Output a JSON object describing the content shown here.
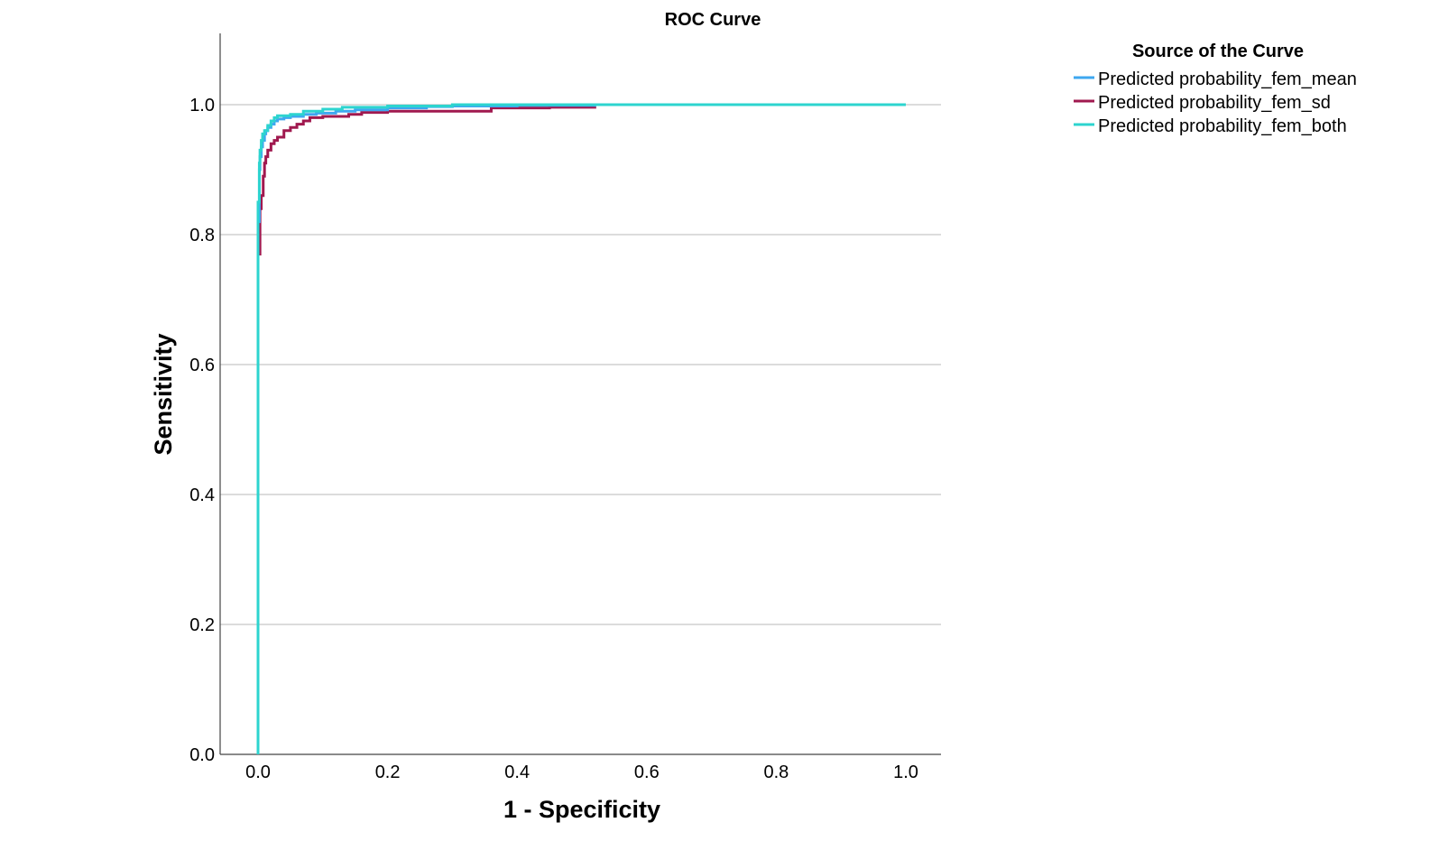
{
  "chart_data": {
    "type": "line",
    "title": "ROC Curve",
    "xlabel": "1 - Specificity",
    "ylabel": "Sensitivity",
    "xlim": [
      0,
      1
    ],
    "ylim": [
      0,
      1
    ],
    "x_ticks": [
      "0.0",
      "0.2",
      "0.4",
      "0.6",
      "0.8",
      "1.0"
    ],
    "y_ticks": [
      "0.0",
      "0.2",
      "0.4",
      "0.6",
      "0.8",
      "1.0"
    ],
    "grid": "horizontal",
    "legend": {
      "title": "Source of the Curve",
      "position": "top-right"
    },
    "series": [
      {
        "name": "Predicted probability_fem_mean",
        "color": "#3ea7f0",
        "x": [
          0,
          0,
          0.002,
          0.003,
          0.005,
          0.007,
          0.01,
          0.012,
          0.015,
          0.02,
          0.025,
          0.03,
          0.04,
          0.05,
          0.07,
          0.09,
          0.12,
          0.15,
          0.2,
          0.26,
          0.3,
          0.4,
          0.52,
          0.6,
          0.8,
          1.0
        ],
        "y": [
          0,
          0.82,
          0.9,
          0.92,
          0.935,
          0.945,
          0.955,
          0.96,
          0.965,
          0.97,
          0.975,
          0.978,
          0.98,
          0.982,
          0.985,
          0.987,
          0.99,
          0.992,
          0.995,
          0.997,
          0.998,
          0.999,
          1.0,
          1.0,
          1.0,
          1.0
        ]
      },
      {
        "name": "Predicted probability_fem_sd",
        "color": "#a0194f",
        "x": [
          0,
          0,
          0.003,
          0.005,
          0.008,
          0.01,
          0.012,
          0.015,
          0.02,
          0.025,
          0.03,
          0.04,
          0.05,
          0.06,
          0.07,
          0.08,
          0.1,
          0.14,
          0.16,
          0.2,
          0.25,
          0.3,
          0.36,
          0.45,
          0.52
        ],
        "y": [
          0,
          0.77,
          0.84,
          0.86,
          0.89,
          0.91,
          0.92,
          0.93,
          0.94,
          0.945,
          0.95,
          0.96,
          0.965,
          0.97,
          0.975,
          0.98,
          0.982,
          0.985,
          0.988,
          0.99,
          0.99,
          0.99,
          0.995,
          0.996,
          0.997
        ]
      },
      {
        "name": "Predicted probability_fem_both",
        "color": "#2dd4cf",
        "x": [
          0,
          0,
          0.002,
          0.003,
          0.005,
          0.007,
          0.01,
          0.015,
          0.02,
          0.025,
          0.03,
          0.05,
          0.07,
          0.1,
          0.13,
          0.2,
          0.3,
          0.5,
          0.8,
          1.0
        ],
        "y": [
          0,
          0.85,
          0.91,
          0.93,
          0.945,
          0.955,
          0.96,
          0.968,
          0.975,
          0.98,
          0.983,
          0.985,
          0.99,
          0.993,
          0.996,
          0.998,
          1.0,
          1.0,
          1.0,
          1.0
        ]
      }
    ]
  }
}
